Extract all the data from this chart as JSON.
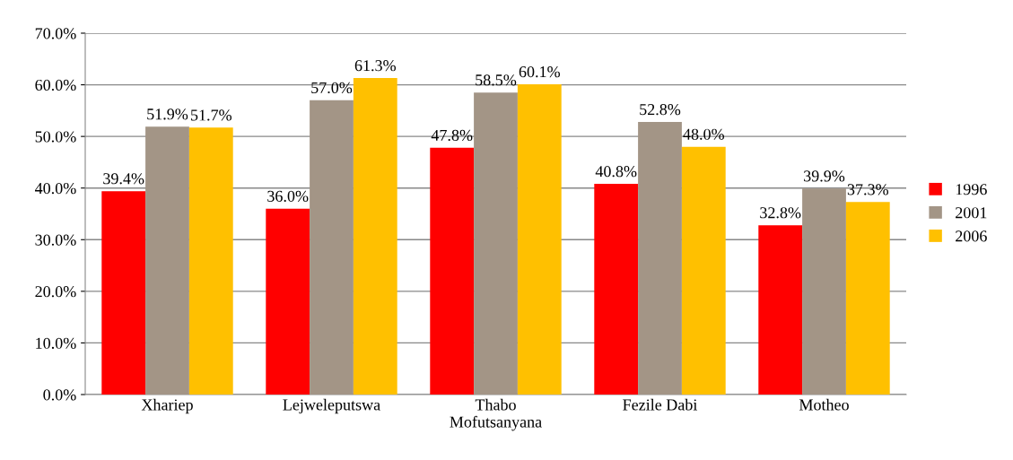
{
  "chart_data": {
    "type": "bar",
    "categories": [
      "Xhariep",
      "Lejweleputswa",
      "Thabo\nMofutsanyana",
      "Fezile Dabi",
      "Motheo"
    ],
    "series": [
      {
        "name": "1996",
        "color": "#ff0000",
        "values": [
          39.4,
          36.0,
          47.8,
          40.8,
          32.8
        ],
        "value_labels": [
          "39.4%",
          "36.0%",
          "47.8%",
          "40.8%",
          "32.8%"
        ]
      },
      {
        "name": "2001",
        "color": "#a39586",
        "values": [
          51.9,
          57.0,
          58.5,
          52.8,
          39.9
        ],
        "value_labels": [
          "51.9%",
          "57.0%",
          "58.5%",
          "52.8%",
          "39.9%"
        ]
      },
      {
        "name": "2006",
        "color": "#ffc000",
        "values": [
          51.7,
          61.3,
          60.1,
          48.0,
          37.3
        ],
        "value_labels": [
          "51.7%",
          "61.3%",
          "60.1%",
          "48.0%",
          "37.3%"
        ]
      }
    ],
    "ylim": [
      0,
      70
    ],
    "yticks": [
      {
        "value": 0,
        "label": "0.0%"
      },
      {
        "value": 10,
        "label": "10.0%"
      },
      {
        "value": 20,
        "label": "20.0%"
      },
      {
        "value": 30,
        "label": "30.0%"
      },
      {
        "value": 40,
        "label": "40.0%"
      },
      {
        "value": 50,
        "label": "50.0%"
      },
      {
        "value": 60,
        "label": "60.0%"
      },
      {
        "value": 70,
        "label": "70.0%"
      }
    ],
    "grid": "y",
    "legend": "right"
  }
}
